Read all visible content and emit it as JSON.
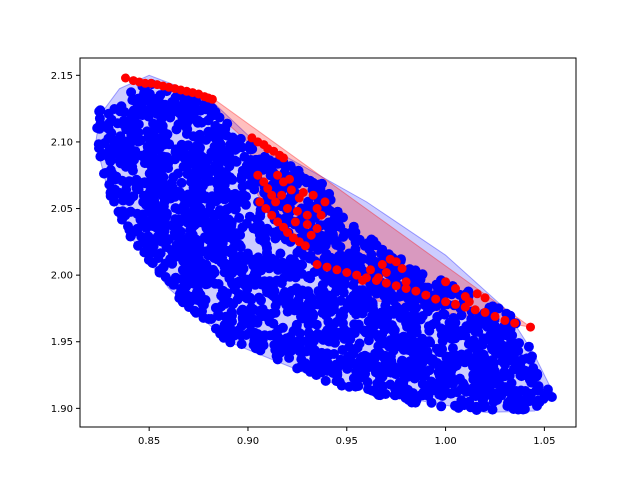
{
  "chart_data": {
    "type": "scatter",
    "title": "",
    "xlabel": "",
    "ylabel": "",
    "xlim": [
      0.815,
      1.066
    ],
    "ylim": [
      1.886,
      2.163
    ],
    "x_ticks": [
      0.85,
      0.9,
      0.95,
      1.0,
      1.05
    ],
    "y_ticks": [
      1.9,
      1.95,
      2.0,
      2.05,
      2.1,
      2.15
    ],
    "x_tick_labels": [
      "0.85",
      "0.90",
      "0.95",
      "1.00",
      "1.05"
    ],
    "y_tick_labels": [
      "1.90",
      "1.95",
      "2.00",
      "2.05",
      "2.10",
      "2.15"
    ],
    "grid": false,
    "series": [
      {
        "color": "#0000ff",
        "hull_fill": "#0000ff",
        "hull_points": [
          [
            0.825,
            2.12
          ],
          [
            0.835,
            2.14
          ],
          [
            0.85,
            2.15
          ],
          [
            0.88,
            2.133
          ],
          [
            0.9,
            2.105
          ],
          [
            0.93,
            2.08
          ],
          [
            0.96,
            2.055
          ],
          [
            1.0,
            2.015
          ],
          [
            1.03,
            1.975
          ],
          [
            1.045,
            1.94
          ],
          [
            1.055,
            1.91
          ],
          [
            1.045,
            1.898
          ],
          [
            1.02,
            1.897
          ],
          [
            0.99,
            1.905
          ],
          [
            0.94,
            1.92
          ],
          [
            0.89,
            1.95
          ],
          [
            0.86,
            1.99
          ],
          [
            0.84,
            2.03
          ],
          [
            0.828,
            2.07
          ],
          [
            0.823,
            2.1
          ]
        ],
        "region": [
          [
            0.825,
            2.126
          ],
          [
            0.83,
            2.124
          ],
          [
            0.835,
            2.133
          ],
          [
            0.84,
            2.14
          ],
          [
            0.85,
            2.145
          ],
          [
            0.88,
            2.13
          ],
          [
            0.9,
            2.1
          ],
          [
            0.92,
            2.085
          ],
          [
            0.94,
            2.068
          ],
          [
            0.95,
            2.04
          ],
          [
            0.96,
            2.03
          ],
          [
            0.975,
            2.015
          ],
          [
            0.99,
            2.0
          ],
          [
            1.01,
            1.99
          ],
          [
            1.03,
            1.975
          ],
          [
            1.04,
            1.955
          ],
          [
            1.045,
            1.935
          ],
          [
            1.055,
            1.91
          ],
          [
            1.05,
            1.9
          ],
          [
            1.03,
            1.898
          ],
          [
            1.02,
            1.897
          ],
          [
            1.0,
            1.9
          ],
          [
            0.98,
            1.905
          ],
          [
            0.96,
            1.912
          ],
          [
            0.94,
            1.92
          ],
          [
            0.92,
            1.932
          ],
          [
            0.9,
            1.945
          ],
          [
            0.89,
            1.95
          ],
          [
            0.875,
            1.968
          ],
          [
            0.86,
            1.99
          ],
          [
            0.85,
            2.01
          ],
          [
            0.84,
            2.03
          ],
          [
            0.83,
            2.06
          ],
          [
            0.825,
            2.085
          ],
          [
            0.823,
            2.105
          ]
        ],
        "n_points": 2200
      },
      {
        "color": "#ff0000",
        "hull_fill": "#ff0000",
        "hull_points": [
          [
            0.838,
            2.148
          ],
          [
            0.86,
            2.143
          ],
          [
            0.882,
            2.133
          ],
          [
            1.043,
            1.961
          ],
          [
            0.96,
            1.982
          ],
          [
            0.93,
            2.015
          ],
          [
            0.905,
            2.06
          ],
          [
            0.9,
            2.1
          ],
          [
            0.875,
            2.133
          ],
          [
            0.85,
            2.142
          ]
        ],
        "points": [
          [
            0.838,
            2.148
          ],
          [
            0.842,
            2.146
          ],
          [
            0.845,
            2.145
          ],
          [
            0.848,
            2.144
          ],
          [
            0.851,
            2.144
          ],
          [
            0.854,
            2.143
          ],
          [
            0.857,
            2.142
          ],
          [
            0.86,
            2.141
          ],
          [
            0.863,
            2.14
          ],
          [
            0.866,
            2.139
          ],
          [
            0.869,
            2.138
          ],
          [
            0.872,
            2.137
          ],
          [
            0.875,
            2.136
          ],
          [
            0.878,
            2.134
          ],
          [
            0.88,
            2.133
          ],
          [
            0.882,
            2.132
          ],
          [
            0.902,
            2.103
          ],
          [
            0.905,
            2.1
          ],
          [
            0.908,
            2.098
          ],
          [
            0.91,
            2.095
          ],
          [
            0.913,
            2.093
          ],
          [
            0.916,
            2.09
          ],
          [
            0.918,
            2.088
          ],
          [
            0.905,
            2.075
          ],
          [
            0.908,
            2.07
          ],
          [
            0.91,
            2.065
          ],
          [
            0.912,
            2.06
          ],
          [
            0.906,
            2.055
          ],
          [
            0.909,
            2.05
          ],
          [
            0.912,
            2.045
          ],
          [
            0.915,
            2.04
          ],
          [
            0.918,
            2.036
          ],
          [
            0.92,
            2.032
          ],
          [
            0.923,
            2.028
          ],
          [
            0.926,
            2.025
          ],
          [
            0.929,
            2.022
          ],
          [
            0.932,
            2.03
          ],
          [
            0.935,
            2.035
          ],
          [
            0.937,
            2.045
          ],
          [
            0.939,
            2.055
          ],
          [
            0.933,
            2.06
          ],
          [
            0.928,
            2.062
          ],
          [
            0.922,
            2.064
          ],
          [
            0.917,
            2.06
          ],
          [
            0.914,
            2.055
          ],
          [
            0.92,
            2.05
          ],
          [
            0.925,
            2.048
          ],
          [
            0.93,
            2.045
          ],
          [
            0.935,
            2.05
          ],
          [
            0.924,
            2.04
          ],
          [
            0.93,
            2.038
          ],
          [
            0.918,
            2.07
          ],
          [
            0.915,
            2.075
          ],
          [
            0.921,
            2.072
          ],
          [
            0.926,
            2.058
          ],
          [
            0.935,
            2.008
          ],
          [
            0.94,
            2.006
          ],
          [
            0.945,
            2.004
          ],
          [
            0.95,
            2.002
          ],
          [
            0.955,
            2.0
          ],
          [
            0.96,
            1.998
          ],
          [
            0.965,
            1.996
          ],
          [
            0.97,
            1.994
          ],
          [
            0.975,
            1.992
          ],
          [
            0.98,
            1.99
          ],
          [
            0.985,
            1.988
          ],
          [
            0.99,
            1.985
          ],
          [
            0.995,
            1.982
          ],
          [
            1.0,
            1.98
          ],
          [
            1.005,
            1.978
          ],
          [
            1.01,
            1.976
          ],
          [
            1.015,
            1.974
          ],
          [
            1.02,
            1.972
          ],
          [
            1.025,
            1.969
          ],
          [
            1.03,
            1.966
          ],
          [
            1.035,
            1.964
          ],
          [
            1.043,
            1.961
          ],
          [
            0.962,
            2.004
          ],
          [
            0.968,
            2.008
          ],
          [
            0.972,
            2.012
          ],
          [
            0.975,
            2.01
          ],
          [
            0.978,
            2.005
          ],
          [
            0.97,
            2.002
          ],
          [
            0.966,
            1.998
          ],
          [
            0.958,
            1.996
          ],
          [
            0.98,
            1.995
          ],
          [
            1.0,
            1.995
          ],
          [
            1.005,
            1.99
          ],
          [
            1.01,
            1.984
          ],
          [
            1.012,
            1.98
          ],
          [
            1.016,
            1.986
          ],
          [
            1.02,
            1.983
          ]
        ]
      }
    ]
  }
}
